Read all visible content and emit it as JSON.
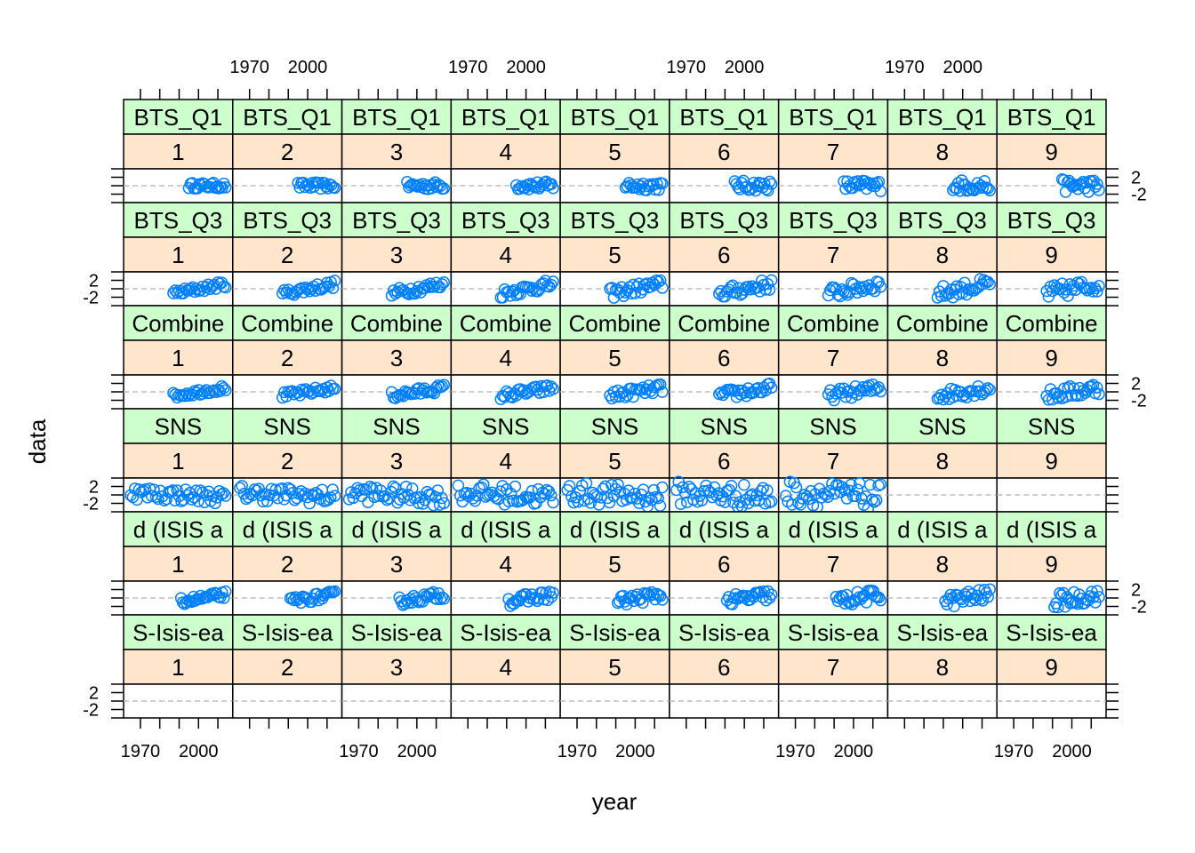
{
  "chart_data": {
    "type": "scatter",
    "xlabel": "year",
    "ylabel": "data",
    "x_ticks": [
      1970,
      2000
    ],
    "xlim": [
      1965,
      2014
    ],
    "y_ticks": [
      2,
      -2
    ],
    "ylim": [
      -4,
      4
    ],
    "reference_line_y": 0,
    "grid": false,
    "ages": [
      "1",
      "2",
      "3",
      "4",
      "5",
      "6",
      "7",
      "8",
      "9"
    ],
    "surveys": [
      {
        "name": "BTS_Q1",
        "start": 1995,
        "end": 2014,
        "amp": 0.7,
        "trend": 0.0,
        "n": 22,
        "missing": []
      },
      {
        "name": "BTS_Q3",
        "start": 1987,
        "end": 2014,
        "amp": 0.8,
        "trend": 2.2,
        "n": 28,
        "missing": []
      },
      {
        "name": "Combine",
        "start": 1987,
        "end": 2014,
        "amp": 0.7,
        "trend": 1.8,
        "n": 28,
        "missing": []
      },
      {
        "name": "SNS",
        "start": 1965,
        "end": 2014,
        "amp": 1.6,
        "trend": -1.0,
        "n": 46,
        "missing": [
          "8",
          "9"
        ]
      },
      {
        "name": "d (ISIS a",
        "start": 1991,
        "end": 2014,
        "amp": 0.8,
        "trend": 1.6,
        "n": 26,
        "missing": []
      },
      {
        "name": "S-Isis-ea",
        "start": 0,
        "end": 0,
        "amp": 0,
        "trend": 0,
        "n": 0,
        "missing": [
          "1",
          "2",
          "3",
          "4",
          "5",
          "6",
          "7",
          "8",
          "9"
        ]
      }
    ]
  },
  "colors": {
    "points": "#0080ff",
    "strip_survey": "#ccffcc",
    "strip_age": "#ffe5cc",
    "refline": "#bebebe",
    "frame": "#000000"
  }
}
